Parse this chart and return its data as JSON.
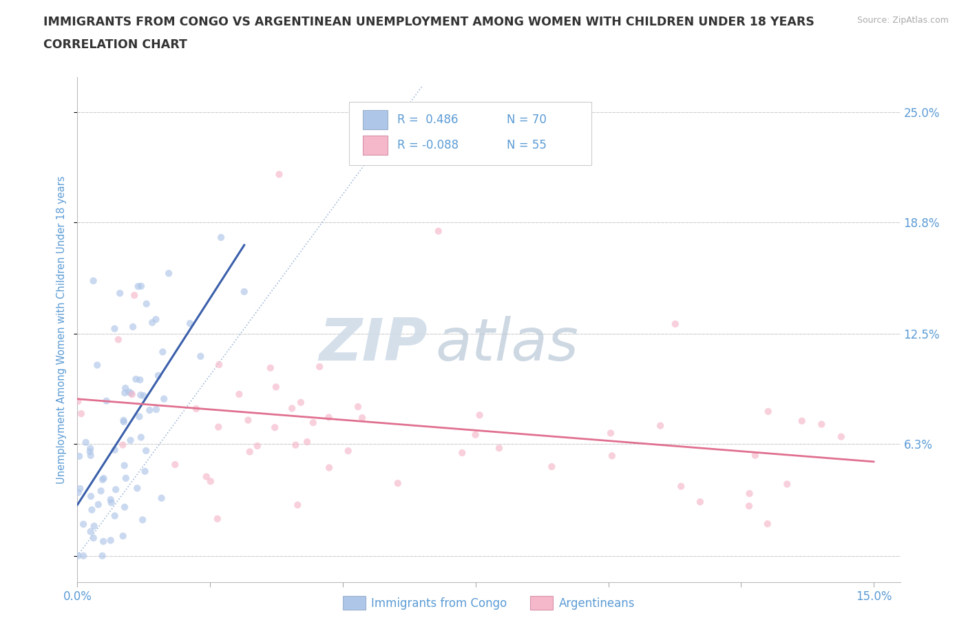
{
  "title_line1": "IMMIGRANTS FROM CONGO VS ARGENTINEAN UNEMPLOYMENT AMONG WOMEN WITH CHILDREN UNDER 18 YEARS",
  "title_line2": "CORRELATION CHART",
  "source_text": "Source: ZipAtlas.com",
  "ylabel": "Unemployment Among Women with Children Under 18 years",
  "xlim": [
    0.0,
    0.155
  ],
  "ylim": [
    -0.015,
    0.27
  ],
  "xticks": [
    0.0,
    0.025,
    0.05,
    0.075,
    0.1,
    0.125,
    0.15
  ],
  "xticklabels": [
    "0.0%",
    "",
    "",
    "",
    "",
    "",
    "15.0%"
  ],
  "ytick_positions": [
    0.0,
    0.063,
    0.125,
    0.188,
    0.25
  ],
  "right_ytick_labels": [
    "",
    "6.3%",
    "12.5%",
    "18.8%",
    "25.0%"
  ],
  "grid_color": "#d0d0d0",
  "background_color": "#ffffff",
  "watermark_zip": "ZIP",
  "watermark_atlas": "atlas",
  "legend_r1": "R =  0.486",
  "legend_n1": "N = 70",
  "legend_r2": "R = -0.088",
  "legend_n2": "N = 55",
  "color_congo": "#aec6e8",
  "color_arg": "#f5b8ca",
  "line_color_congo": "#3a5faa",
  "line_color_arg": "#e07090",
  "title_color": "#333333",
  "tick_label_color": "#5b9bd5",
  "legend_text_color": "#5b9bd5",
  "scatter_alpha": 0.65,
  "scatter_size": 55
}
